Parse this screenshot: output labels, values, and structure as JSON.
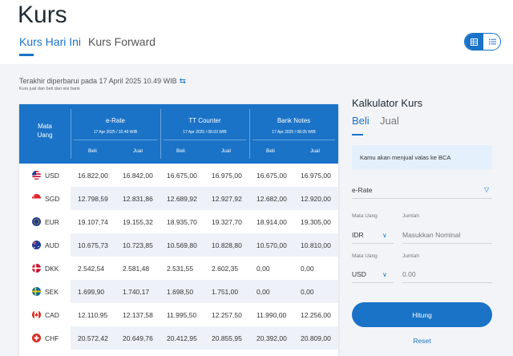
{
  "page": {
    "title": "Kurs"
  },
  "tabs": [
    {
      "label": "Kurs Hari Ini"
    },
    {
      "label": "Kurs Forward"
    }
  ],
  "updated": {
    "text": "Terakhir diperbarui pada  17 April 2025 10.49  WIB",
    "note": "Kurs jual dan beli dari sisi bank"
  },
  "table": {
    "currency_header": [
      "Mata",
      "Uang"
    ],
    "groups": [
      {
        "name": "e-Rate",
        "date": "17 Apr 2025 / 10.49 WIB"
      },
      {
        "name": "TT Counter",
        "date": "17 Apr 2025 / 08.03 WIB"
      },
      {
        "name": "Bank Notes",
        "date": "17 Apr 2025 / 08.05 WIB"
      }
    ],
    "sub_buy": "Beli",
    "sub_sell": "Jual",
    "rows": [
      {
        "currency": "USD",
        "flag": "US",
        "values": [
          "16.822,00",
          "16.842,00",
          "16.675,00",
          "16.975,00",
          "16.675,00",
          "16.975,00"
        ]
      },
      {
        "currency": "SGD",
        "flag": "SG",
        "values": [
          "12.798,59",
          "12.831,86",
          "12.689,92",
          "12.927,92",
          "12.682,00",
          "12.920,00"
        ]
      },
      {
        "currency": "EUR",
        "flag": "EU",
        "values": [
          "19.107,74",
          "19.155,32",
          "18.935,70",
          "19.327,70",
          "18.914,00",
          "19.305,00"
        ]
      },
      {
        "currency": "AUD",
        "flag": "AU",
        "values": [
          "10.675,73",
          "10.723,85",
          "10.569,80",
          "10.828,80",
          "10.570,00",
          "10.810,00"
        ]
      },
      {
        "currency": "DKK",
        "flag": "DK",
        "values": [
          "2.542,54",
          "2.581,48",
          "2.531,55",
          "2.602,35",
          "0,00",
          "0,00"
        ]
      },
      {
        "currency": "SEK",
        "flag": "SE",
        "values": [
          "1.699,90",
          "1.740,17",
          "1.698,50",
          "1.751,00",
          "0,00",
          "0,00"
        ]
      },
      {
        "currency": "CAD",
        "flag": "CA",
        "values": [
          "12.110,95",
          "12.137,58",
          "11.995,50",
          "12.257,50",
          "11.990,00",
          "12.256,00"
        ]
      },
      {
        "currency": "CHF",
        "flag": "CH",
        "values": [
          "20.572,42",
          "20.649,76",
          "20.412,95",
          "20.855,95",
          "20.392,00",
          "20.809,00"
        ]
      }
    ]
  },
  "calculator": {
    "title": "Kalkulator Kurs",
    "tabs": [
      {
        "label": "Beli"
      },
      {
        "label": "Jual"
      }
    ],
    "info": "Kamu akan menjual valas ke BCA",
    "rate_type": "e-Rate",
    "row1": {
      "currency_label": "Mata Uang",
      "amount_label": "Jumlah",
      "currency": "IDR",
      "amount_placeholder": "Masukkan Nominal"
    },
    "row2": {
      "currency_label": "Mata Uang",
      "amount_label": "Jumlah",
      "currency": "USD",
      "amount_value": "0.00"
    },
    "submit": "Hitung",
    "reset": "Reset"
  },
  "colors": {
    "accent": "#1a73c7",
    "header_bg": "#1a73c7",
    "alt_row": "#eef2f8",
    "info_bg": "#e4f0fb"
  },
  "icons": [
    "refresh-icon",
    "grid-view-icon",
    "list-view-icon",
    "chevron-down-icon"
  ]
}
